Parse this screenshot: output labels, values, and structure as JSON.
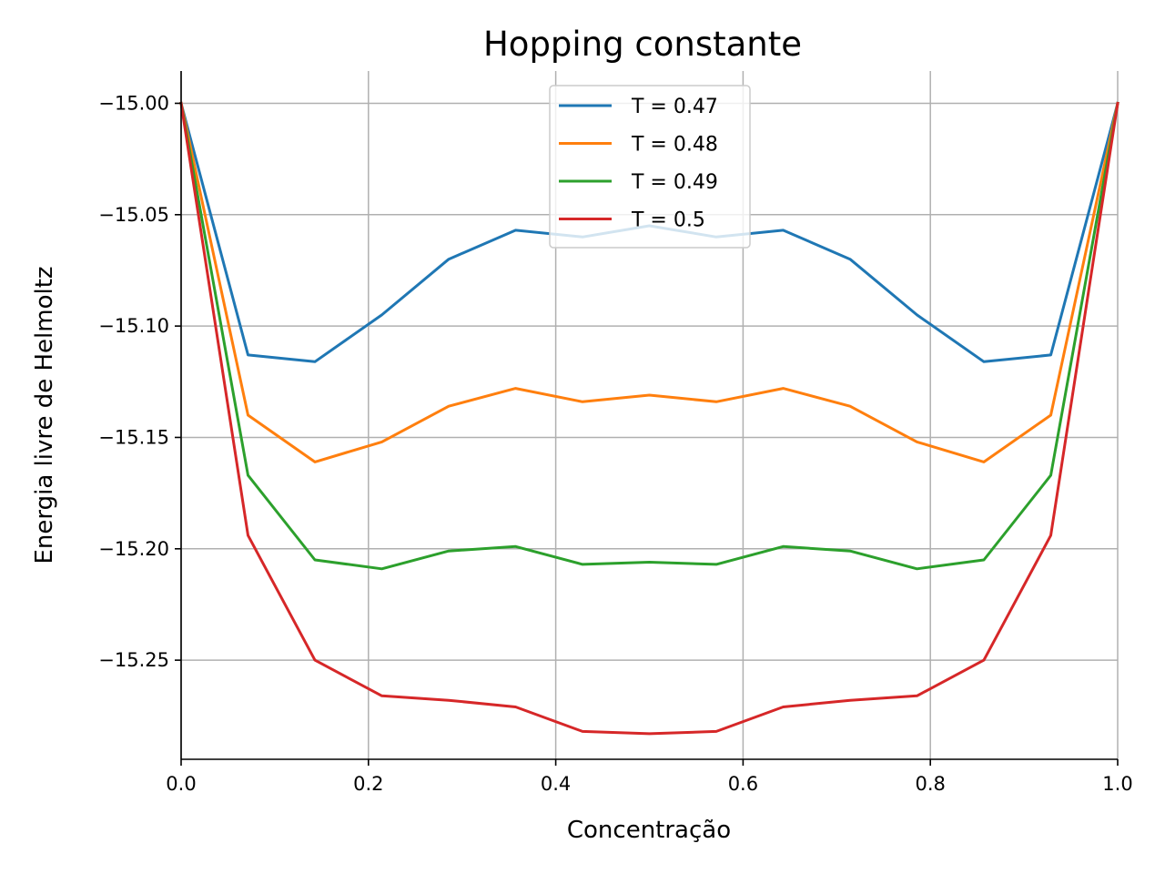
{
  "chart_data": {
    "type": "line",
    "title": "Hopping constante",
    "xlabel": "Concentração",
    "ylabel": "Energia livre de Helmoltz",
    "xlim": [
      0.0,
      1.0
    ],
    "ylim": [
      -15.2945,
      -14.9855
    ],
    "xticks": [
      0.0,
      0.2,
      0.4,
      0.6,
      0.8,
      1.0
    ],
    "xtick_labels": [
      "0.0",
      "0.2",
      "0.4",
      "0.6",
      "0.8",
      "1.0"
    ],
    "yticks": [
      -15.0,
      -15.05,
      -15.1,
      -15.15,
      -15.2,
      -15.25
    ],
    "ytick_labels": [
      "−15.00",
      "−15.05",
      "−15.10",
      "−15.15",
      "−15.20",
      "−15.25"
    ],
    "grid": true,
    "legend_position": "top-center",
    "x": [
      0.0,
      0.0714,
      0.1429,
      0.2143,
      0.2857,
      0.3571,
      0.4286,
      0.5,
      0.5714,
      0.6429,
      0.7143,
      0.7857,
      0.8571,
      0.9286,
      1.0
    ],
    "series": [
      {
        "name": "T = 0.47",
        "color": "#1f77b4",
        "values": [
          -15.0,
          -15.113,
          -15.116,
          -15.095,
          -15.07,
          -15.057,
          -15.06,
          -15.055,
          -15.06,
          -15.057,
          -15.07,
          -15.095,
          -15.116,
          -15.113,
          -15.0
        ]
      },
      {
        "name": "T = 0.48",
        "color": "#ff7f0e",
        "values": [
          -15.0,
          -15.14,
          -15.161,
          -15.152,
          -15.136,
          -15.128,
          -15.134,
          -15.131,
          -15.134,
          -15.128,
          -15.136,
          -15.152,
          -15.161,
          -15.14,
          -15.0
        ]
      },
      {
        "name": "T = 0.49",
        "color": "#2ca02c",
        "values": [
          -15.0,
          -15.167,
          -15.205,
          -15.209,
          -15.201,
          -15.199,
          -15.207,
          -15.206,
          -15.207,
          -15.199,
          -15.201,
          -15.209,
          -15.205,
          -15.167,
          -15.0
        ]
      },
      {
        "name": "T = 0.5",
        "color": "#d62728",
        "values": [
          -15.0,
          -15.194,
          -15.25,
          -15.266,
          -15.268,
          -15.271,
          -15.282,
          -15.283,
          -15.282,
          -15.271,
          -15.268,
          -15.266,
          -15.25,
          -15.194,
          -15.0
        ]
      }
    ]
  }
}
